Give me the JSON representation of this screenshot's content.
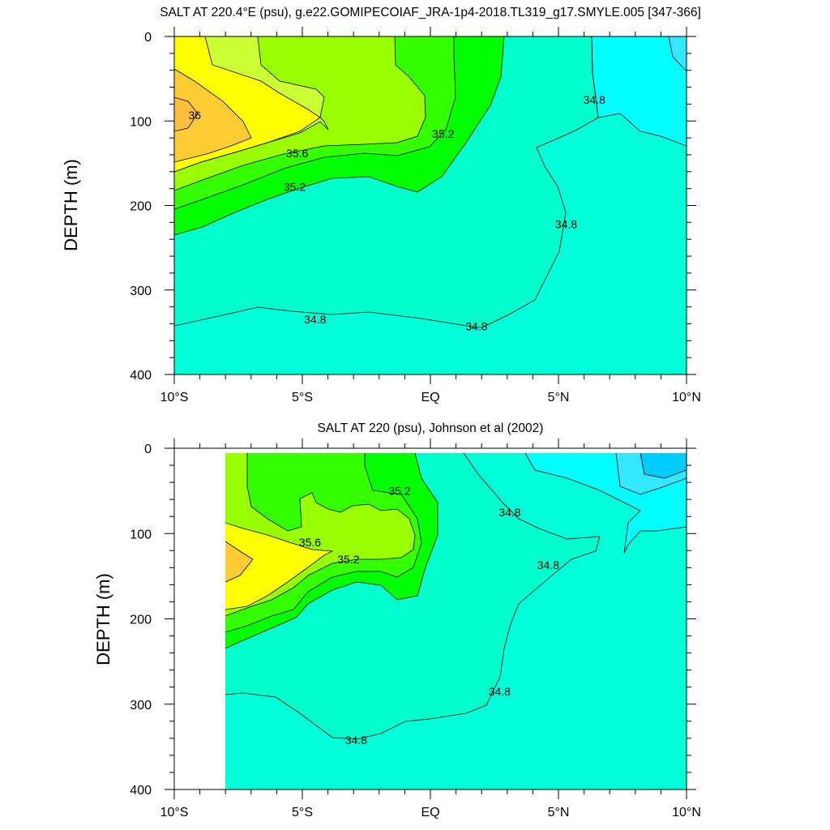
{
  "chart_data": [
    {
      "type": "contour",
      "title": "SALT AT 220.4°E (psu), g.e22.GOMIPECOIAF_JRA-1p4-2018.TL319_g17.SMYLE.005 [347-366]",
      "ylabel": "DEPTH (m)",
      "xlim": [
        -10,
        10
      ],
      "ylim": [
        400,
        0
      ],
      "x_ticks": [
        {
          "value": -10,
          "label": "10°S"
        },
        {
          "value": -5,
          "label": "5°S"
        },
        {
          "value": 0,
          "label": "EQ"
        },
        {
          "value": 5,
          "label": "5°N"
        },
        {
          "value": 10,
          "label": "10°N"
        }
      ],
      "y_ticks": [
        {
          "value": 0,
          "label": "0"
        },
        {
          "value": 100,
          "label": "100"
        },
        {
          "value": 200,
          "label": "200"
        },
        {
          "value": 300,
          "label": "300"
        },
        {
          "value": 400,
          "label": "400"
        }
      ],
      "data_extent": {
        "x": [
          -10,
          10
        ],
        "depth": [
          0,
          400
        ]
      },
      "contour_labels": [
        {
          "text": "36",
          "x": -9.2,
          "y": 93
        },
        {
          "text": "35.6",
          "x": -5.2,
          "y": 138
        },
        {
          "text": "35.2",
          "x": -5.3,
          "y": 178
        },
        {
          "text": "35.2",
          "x": 0.5,
          "y": 115
        },
        {
          "text": "34.8",
          "x": 6.4,
          "y": 75
        },
        {
          "text": "34.8",
          "x": 5.3,
          "y": 222
        },
        {
          "text": "34.8",
          "x": -4.5,
          "y": 335
        },
        {
          "text": "34.8",
          "x": 1.8,
          "y": 343
        }
      ]
    },
    {
      "type": "contour",
      "title": "SALT AT 220 (psu), Johnson et al (2002)",
      "ylabel": "DEPTH (m)",
      "xlim": [
        -10,
        10
      ],
      "ylim": [
        400,
        0
      ],
      "x_ticks": [
        {
          "value": -10,
          "label": "10°S"
        },
        {
          "value": -5,
          "label": "5°S"
        },
        {
          "value": 0,
          "label": "EQ"
        },
        {
          "value": 5,
          "label": "5°N"
        },
        {
          "value": 10,
          "label": "10°N"
        }
      ],
      "y_ticks": [
        {
          "value": 0,
          "label": "0"
        },
        {
          "value": 100,
          "label": "100"
        },
        {
          "value": 200,
          "label": "200"
        },
        {
          "value": 300,
          "label": "300"
        },
        {
          "value": 400,
          "label": "400"
        }
      ],
      "data_extent": {
        "x": [
          -8,
          10
        ],
        "depth": [
          5,
          400
        ]
      },
      "contour_labels": [
        {
          "text": "35.2",
          "x": -1.2,
          "y": 50
        },
        {
          "text": "35.6",
          "x": -4.7,
          "y": 110
        },
        {
          "text": "35.2",
          "x": -3.2,
          "y": 130
        },
        {
          "text": "34.8",
          "x": 3.1,
          "y": 75
        },
        {
          "text": "34.8",
          "x": 4.6,
          "y": 137
        },
        {
          "text": "34.8",
          "x": 2.7,
          "y": 285
        },
        {
          "text": "34.8",
          "x": -2.9,
          "y": 342
        }
      ]
    }
  ]
}
